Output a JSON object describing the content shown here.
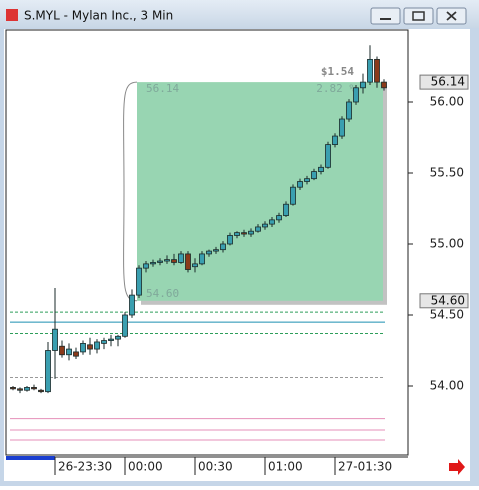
{
  "chart_data": {
    "type": "candlestick",
    "title": "S.MYL - Mylan Inc., 3 Min",
    "categories": [
      null,
      null,
      null,
      null,
      null,
      null,
      "26-23:30",
      null,
      null,
      null,
      null,
      null,
      null,
      null,
      null,
      null,
      "00:00",
      null,
      null,
      null,
      null,
      null,
      null,
      null,
      null,
      null,
      "00:30",
      null,
      null,
      null,
      null,
      null,
      null,
      null,
      null,
      null,
      "01:00",
      null,
      null,
      null,
      null,
      null,
      null,
      null,
      null,
      null,
      "27-01:30",
      null,
      null,
      null,
      null,
      null,
      null,
      null
    ],
    "open": [
      53.99,
      53.98,
      53.97,
      53.99,
      53.97,
      53.96,
      54.25,
      54.28,
      54.22,
      54.24,
      54.24,
      54.29,
      54.26,
      54.3,
      54.32,
      54.33,
      54.35,
      54.5,
      54.64,
      54.83,
      54.86,
      54.87,
      54.88,
      54.89,
      54.87,
      54.93,
      54.84,
      54.86,
      54.93,
      54.95,
      54.96,
      55.0,
      55.06,
      55.08,
      55.07,
      55.09,
      55.12,
      55.14,
      55.17,
      55.2,
      55.28,
      55.4,
      55.44,
      55.46,
      55.51,
      55.54,
      55.7,
      55.76,
      55.88,
      56.0,
      56.1,
      56.14,
      56.3,
      56.14
    ],
    "high": [
      54.0,
      53.99,
      54.0,
      54.01,
      53.98,
      54.31,
      54.69,
      54.32,
      54.3,
      54.27,
      54.32,
      54.34,
      54.33,
      54.34,
      54.36,
      54.36,
      54.52,
      54.68,
      54.85,
      54.88,
      54.89,
      54.9,
      54.92,
      54.93,
      54.95,
      54.95,
      54.9,
      54.95,
      54.96,
      54.98,
      55.02,
      55.08,
      55.09,
      55.1,
      55.11,
      55.14,
      55.16,
      55.19,
      55.22,
      55.3,
      55.42,
      55.46,
      55.48,
      55.53,
      55.56,
      55.72,
      55.78,
      55.9,
      56.02,
      56.12,
      56.2,
      56.4,
      56.32,
      56.16
    ],
    "low": [
      53.97,
      53.95,
      53.96,
      53.97,
      53.95,
      53.95,
      54.05,
      54.2,
      54.18,
      54.19,
      54.22,
      54.22,
      54.23,
      54.26,
      54.28,
      54.28,
      54.34,
      54.48,
      54.62,
      54.8,
      54.84,
      54.85,
      54.86,
      54.85,
      54.86,
      54.8,
      54.8,
      54.85,
      54.91,
      54.93,
      54.94,
      54.99,
      55.04,
      55.05,
      55.05,
      55.08,
      55.1,
      55.12,
      55.15,
      55.19,
      55.27,
      55.38,
      55.42,
      55.45,
      55.49,
      55.53,
      55.68,
      55.74,
      55.86,
      55.98,
      56.06,
      56.12,
      56.1,
      56.08
    ],
    "close": [
      53.98,
      53.97,
      53.99,
      53.98,
      53.96,
      54.25,
      54.4,
      54.22,
      54.26,
      54.21,
      54.3,
      54.26,
      54.31,
      54.32,
      54.33,
      54.35,
      54.5,
      54.64,
      54.83,
      54.86,
      54.87,
      54.88,
      54.89,
      54.87,
      54.93,
      54.82,
      54.86,
      54.93,
      54.95,
      54.96,
      55.0,
      55.06,
      55.08,
      55.07,
      55.09,
      55.12,
      55.14,
      55.17,
      55.2,
      55.28,
      55.4,
      55.44,
      55.46,
      55.51,
      55.54,
      55.7,
      55.76,
      55.88,
      56.0,
      56.1,
      56.14,
      56.3,
      56.14,
      56.1
    ],
    "up_color": "#3a9fb0",
    "down_color": "#8b3a1a",
    "ylim": [
      53.514,
      56.507
    ],
    "yticks": [
      {
        "value": 54,
        "label": "54.00"
      },
      {
        "value": 54.5,
        "label": "54.50"
      },
      {
        "value": 55,
        "label": "55.00"
      },
      {
        "value": 55.5,
        "label": "55.50"
      },
      {
        "value": 56,
        "label": "56.00"
      }
    ],
    "levels": [
      {
        "value": 54.52,
        "color": "#2e9e5a",
        "dash": true
      },
      {
        "value": 54.45,
        "color": "#1b8fb0",
        "dash": false
      },
      {
        "value": 54.37,
        "color": "#2e9e5a",
        "dash": true
      },
      {
        "value": 54.06,
        "color": "#999999",
        "dash": true
      },
      {
        "value": 53.77,
        "color": "#e58fb8",
        "dash": false
      },
      {
        "value": 53.69,
        "color": "#e58fb8",
        "dash": false
      },
      {
        "value": 53.62,
        "color": "#e58fb8",
        "dash": false
      }
    ],
    "price_markers": [
      {
        "value": 56.14,
        "label": "56.14"
      },
      {
        "value": 54.6,
        "label": "54.60"
      }
    ],
    "measure": {
      "high": {
        "value": 56.14,
        "label": "56.14"
      },
      "low": {
        "value": 54.6,
        "label": "54.60"
      },
      "change": {
        "value": 1.54,
        "label": "$1.54"
      },
      "percent": {
        "value": 2.82,
        "label": "2.82 %"
      },
      "color": "#98d5b2"
    }
  }
}
